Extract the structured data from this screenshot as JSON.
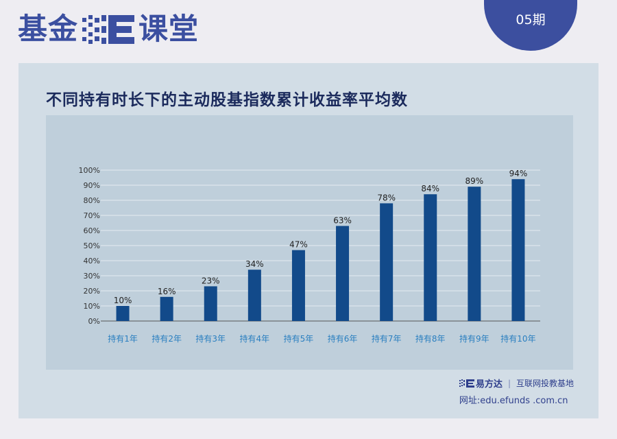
{
  "header": {
    "logo_left": "基金",
    "logo_right": "课堂",
    "issue": "05期"
  },
  "colors": {
    "brand": "#3b4fa0",
    "bar": "#124a8a",
    "tick_label": "#2a7fc0",
    "panel": "#d2dde6",
    "plot_bg": "#bfcfdb"
  },
  "footer": {
    "brand": "易方达",
    "slogan": "互联网投教基地",
    "url": "网址:edu.efunds .com.cn"
  },
  "chart_data": {
    "type": "bar",
    "title": "不同持有时长下的主动股基指数累计收益率平均数",
    "categories": [
      "持有1年",
      "持有2年",
      "持有3年",
      "持有4年",
      "持有5年",
      "持有6年",
      "持有7年",
      "持有8年",
      "持有9年",
      "持有10年"
    ],
    "values": [
      10,
      16,
      23,
      34,
      47,
      63,
      78,
      84,
      89,
      94
    ],
    "data_labels": [
      "10%",
      "16%",
      "23%",
      "34%",
      "47%",
      "63%",
      "78%",
      "84%",
      "89%",
      "94%"
    ],
    "ylim": [
      0,
      100
    ],
    "yticks": [
      "0%",
      "10%",
      "20%",
      "30%",
      "40%",
      "50%",
      "60%",
      "70%",
      "80%",
      "90%",
      "100%"
    ],
    "grid": true,
    "xlabel": "",
    "ylabel": ""
  }
}
